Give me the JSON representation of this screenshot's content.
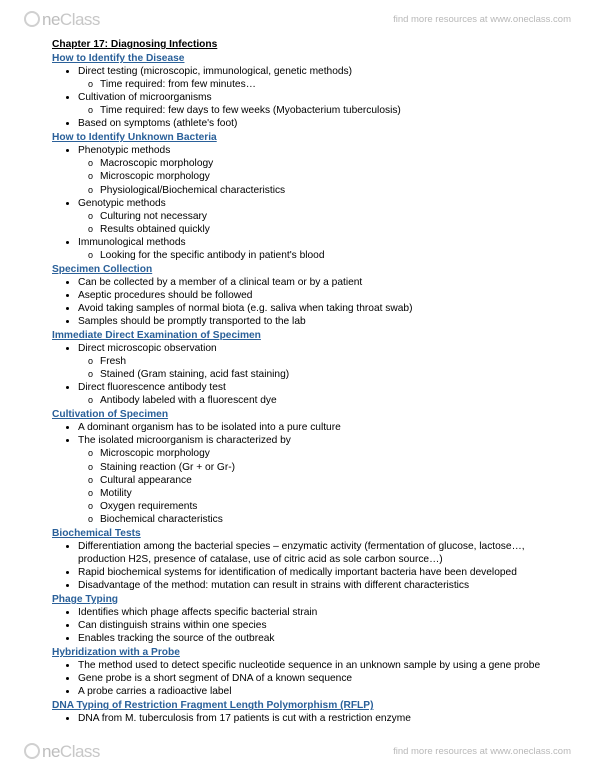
{
  "brand": {
    "part1": "ne",
    "part2": "Class",
    "tagline": "find more resources at www.oneclass.com"
  },
  "chapter_title": "Chapter 17: Diagnosing Infections",
  "sections": [
    {
      "heading": "How to Identify the Disease",
      "items": [
        {
          "text": "Direct testing (microscopic, immunological, genetic methods)",
          "sub": [
            {
              "text": "Time required: from few minutes…"
            }
          ]
        },
        {
          "text": "Cultivation of microorganisms",
          "sub": [
            {
              "text": "Time required: few days to few weeks (Myobacterium tuberculosis)"
            }
          ]
        },
        {
          "text": "Based on symptoms (athlete's foot)"
        }
      ]
    },
    {
      "heading": "How to Identify Unknown Bacteria",
      "items": [
        {
          "text": "Phenotypic methods",
          "sub": [
            {
              "text": "Macroscopic morphology"
            },
            {
              "text": "Microscopic morphology"
            },
            {
              "text": "Physiological/Biochemical characteristics"
            }
          ]
        },
        {
          "text": "Genotypic methods",
          "sub": [
            {
              "text": "Culturing not necessary"
            },
            {
              "text": "Results obtained quickly"
            }
          ]
        },
        {
          "text": "Immunological methods",
          "sub": [
            {
              "text": "Looking for the specific antibody in patient's blood"
            }
          ]
        }
      ]
    },
    {
      "heading": "Specimen Collection",
      "items": [
        {
          "text": "Can be collected by a member of a clinical team or by a patient"
        },
        {
          "text": "Aseptic procedures should be followed"
        },
        {
          "text": "Avoid taking samples of normal biota (e.g. saliva when taking throat swab)"
        },
        {
          "text": "Samples should be promptly transported to the lab"
        }
      ]
    },
    {
      "heading": "Immediate Direct Examination of Specimen",
      "items": [
        {
          "text": "Direct microscopic observation",
          "sub": [
            {
              "text": "Fresh"
            },
            {
              "text": "Stained (Gram staining, acid fast staining)"
            }
          ]
        },
        {
          "text": "Direct fluorescence antibody test",
          "sub": [
            {
              "text": "Antibody labeled with a fluorescent dye"
            }
          ]
        }
      ]
    },
    {
      "heading": "Cultivation of Specimen",
      "items": [
        {
          "text": "A dominant organism has to be isolated into a pure culture"
        },
        {
          "text": "The isolated microorganism is characterized by",
          "sub": [
            {
              "text": "Microscopic morphology"
            },
            {
              "text": "Staining reaction (Gr + or Gr-)"
            },
            {
              "text": "Cultural appearance"
            },
            {
              "text": "Motility"
            },
            {
              "text": "Oxygen requirements"
            },
            {
              "text": "Biochemical characteristics"
            }
          ]
        }
      ]
    },
    {
      "heading": "Biochemical Tests",
      "items": [
        {
          "text": "Differentiation among the bacterial species – enzymatic activity (fermentation of glucose, lactose…, production H2S, presence of catalase, use of citric acid as sole carbon source…)"
        },
        {
          "text": "Rapid biochemical systems for identification of medically important bacteria have been developed"
        },
        {
          "text": "Disadvantage of the method: mutation can result in strains with different characteristics"
        }
      ]
    },
    {
      "heading": "Phage Typing",
      "items": [
        {
          "text": "Identifies which phage affects specific bacterial strain"
        },
        {
          "text": "Can distinguish strains within one species"
        },
        {
          "text": "Enables tracking the source of the outbreak"
        }
      ]
    },
    {
      "heading": "Hybridization with a Probe",
      "items": [
        {
          "text": "The method used to detect specific nucleotide sequence in an unknown sample by using a gene probe"
        },
        {
          "text": "Gene probe is a short segment of DNA of a known sequence"
        },
        {
          "text": "A probe carries a radioactive label"
        }
      ]
    },
    {
      "heading": "DNA Typing of Restriction Fragment Length Polymorphism (RFLP)",
      "items": [
        {
          "text": "DNA from M. tuberculosis from 17 patients is cut with a restriction enzyme"
        }
      ]
    }
  ]
}
